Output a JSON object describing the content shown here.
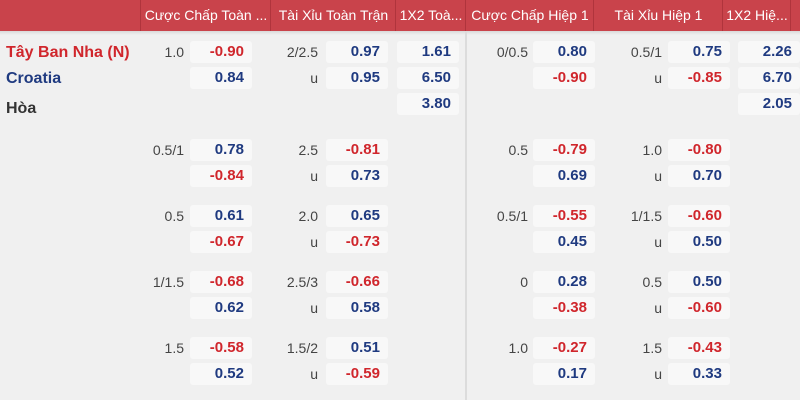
{
  "header": [
    "Cược Chấp Toàn ...",
    "Tài Xỉu Toàn Trận",
    "1X2 Toà...",
    "Cược Chấp Hiệp 1",
    "Tài Xỉu Hiệp 1",
    "1X2 Hiệ..."
  ],
  "teams": [
    {
      "name": "Tây Ban Nha (N)",
      "color": "#d0262c"
    },
    {
      "name": "Croatia",
      "color": "#1f3a80"
    },
    {
      "name": "Hòa",
      "color": "#333333"
    }
  ],
  "under_label": "u",
  "main": {
    "ft_hdp": {
      "line": "1.0",
      "values": [
        "-0.90",
        "0.84"
      ]
    },
    "ft_ou": {
      "line": "2/2.5",
      "values": [
        "0.97",
        "0.95"
      ]
    },
    "ft_1x2": [
      "1.61",
      "6.50",
      "3.80"
    ],
    "h1_hdp": {
      "line": "0/0.5",
      "values": [
        "0.80",
        "-0.90"
      ]
    },
    "h1_ou": {
      "line": "0.5/1",
      "values": [
        "0.75",
        "-0.85"
      ]
    },
    "h1_1x2": [
      "2.26",
      "6.70",
      "2.05"
    ]
  },
  "groups": [
    {
      "ft_hdp": {
        "line": "0.5/1",
        "values": [
          "0.78",
          "-0.84"
        ]
      },
      "ft_ou": {
        "line": "2.5",
        "values": [
          "-0.81",
          "0.73"
        ]
      },
      "h1_hdp": {
        "line": "0.5",
        "values": [
          "-0.79",
          "0.69"
        ]
      },
      "h1_ou": {
        "line": "1.0",
        "values": [
          "-0.80",
          "0.70"
        ]
      }
    },
    {
      "ft_hdp": {
        "line": "0.5",
        "values": [
          "0.61",
          "-0.67"
        ]
      },
      "ft_ou": {
        "line": "2.0",
        "values": [
          "0.65",
          "-0.73"
        ]
      },
      "h1_hdp": {
        "line": "0.5/1",
        "values": [
          "-0.55",
          "0.45"
        ]
      },
      "h1_ou": {
        "line": "1/1.5",
        "values": [
          "-0.60",
          "0.50"
        ]
      }
    },
    {
      "ft_hdp": {
        "line": "1/1.5",
        "values": [
          "-0.68",
          "0.62"
        ]
      },
      "ft_ou": {
        "line": "2.5/3",
        "values": [
          "-0.66",
          "0.58"
        ]
      },
      "h1_hdp": {
        "line": "0",
        "values": [
          "0.28",
          "-0.38"
        ]
      },
      "h1_ou": {
        "line": "0.5",
        "values": [
          "0.50",
          "-0.60"
        ]
      }
    },
    {
      "ft_hdp": {
        "line": "1.5",
        "values": [
          "-0.58",
          "0.52"
        ]
      },
      "ft_ou": {
        "line": "1.5/2",
        "values": [
          "0.51",
          "-0.59"
        ]
      },
      "h1_hdp": {
        "line": "1.0",
        "values": [
          "-0.27",
          "0.17"
        ]
      },
      "h1_ou": {
        "line": "1.5",
        "values": [
          "-0.43",
          "0.33"
        ]
      }
    }
  ]
}
